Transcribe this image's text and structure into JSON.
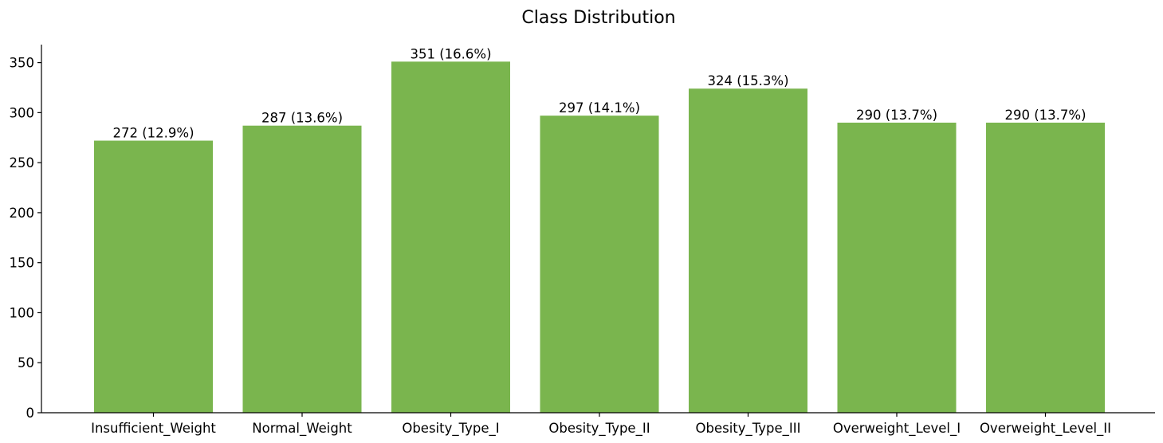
{
  "chart_data": {
    "type": "bar",
    "title": "Class Distribution",
    "xlabel": "",
    "ylabel": "",
    "categories": [
      "Insufficient_Weight",
      "Normal_Weight",
      "Obesity_Type_I",
      "Obesity_Type_II",
      "Obesity_Type_III",
      "Overweight_Level_I",
      "Overweight_Level_II"
    ],
    "values": [
      272,
      287,
      351,
      297,
      324,
      290,
      290
    ],
    "data_labels": [
      "272 (12.9%)",
      "287 (13.6%)",
      "351 (16.6%)",
      "297 (14.1%)",
      "324 (15.3%)",
      "290 (13.7%)",
      "290 (13.7%)"
    ],
    "ylim": [
      0,
      368
    ],
    "yticks": [
      0,
      50,
      100,
      150,
      200,
      250,
      300,
      350
    ],
    "bar_color": "#7ab54e",
    "grid": false,
    "legend": "none"
  }
}
